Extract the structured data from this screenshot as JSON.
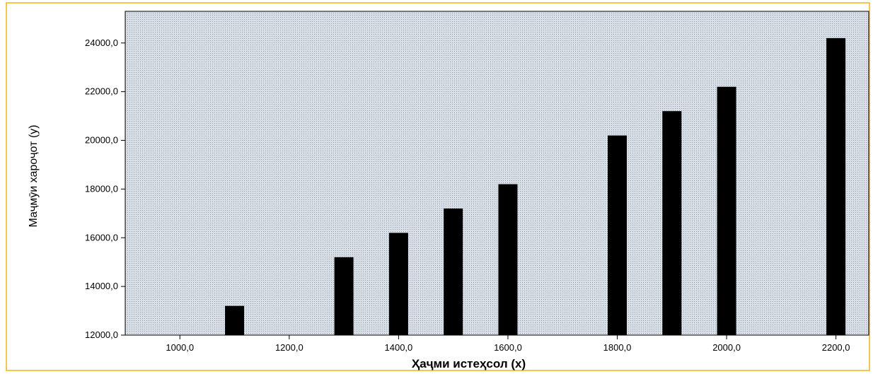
{
  "chart_data": {
    "type": "bar",
    "x": [
      1100,
      1300,
      1400,
      1500,
      1600,
      1800,
      1900,
      2000,
      2200
    ],
    "values": [
      13200,
      15200,
      16200,
      17200,
      18200,
      20200,
      21200,
      22200,
      24200
    ],
    "xlabel": "Ҳаҷми истеҳсол (x)",
    "ylabel": "Маҷмӯи хароҷот (y)",
    "xlim": [
      900,
      2260
    ],
    "ylim": [
      12000,
      25300
    ],
    "x_ticks": [
      1000,
      1200,
      1400,
      1600,
      1800,
      2000,
      2200
    ],
    "x_tick_labels": [
      "1000,0",
      "1200,0",
      "1400,0",
      "1600,0",
      "1800,0",
      "2000,0",
      "2200,0"
    ],
    "y_ticks": [
      12000,
      14000,
      16000,
      18000,
      20000,
      22000,
      24000
    ],
    "y_tick_labels": [
      "12000,0",
      "14000,0",
      "16000,0",
      "18000,0",
      "20000,0",
      "22000,0",
      "24000,0"
    ],
    "grid": false,
    "colors": {
      "bar": "#000000",
      "plot_background": "#c9d2dc",
      "frame_border": "#f2c94c"
    }
  }
}
